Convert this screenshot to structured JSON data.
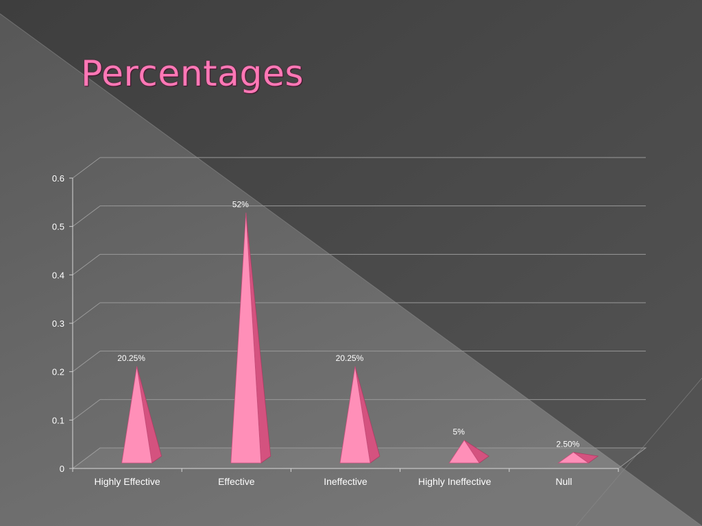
{
  "slide": {
    "title": "Percentages"
  },
  "colors": {
    "background_dark": "#474747",
    "background_light": "#6e6e6e",
    "title": "#ff78b6",
    "pyramid_front": "#ff8fb8",
    "pyramid_side": "#d4527f",
    "gridline": "#9a9a9a",
    "text": "#ffffff"
  },
  "chart_data": {
    "type": "bar",
    "bar_shape": "pyramid",
    "title": "",
    "xlabel": "",
    "ylabel": "",
    "categories": [
      "Highly Effective",
      "Effective",
      "Ineffective",
      "Highly Ineffective",
      "Null"
    ],
    "values": [
      0.2025,
      0.52,
      0.2025,
      0.05,
      0.025
    ],
    "data_labels": [
      "20.25%",
      "52%",
      "20.25%",
      "5%",
      "2.50%"
    ],
    "ylim": [
      0,
      0.6
    ],
    "yticks": [
      0,
      0.1,
      0.2,
      0.3,
      0.4,
      0.5,
      0.6
    ],
    "ytick_labels": [
      "0",
      "0.1",
      "0.2",
      "0.3",
      "0.4",
      "0.5",
      "0.6"
    ],
    "grid": true,
    "legend": "none",
    "perspective": "3d"
  }
}
